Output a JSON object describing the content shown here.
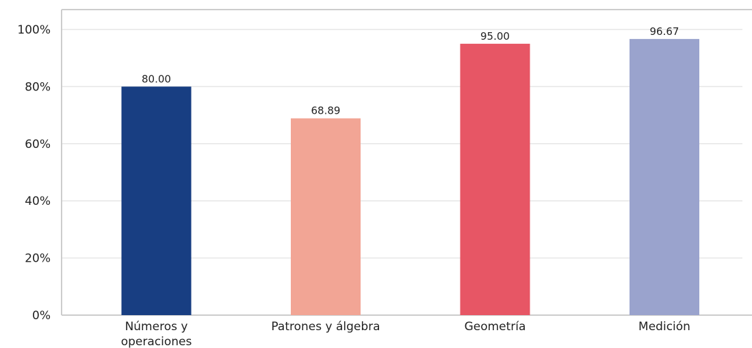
{
  "chart_data": {
    "type": "bar",
    "categories": [
      [
        "Números y",
        "operaciones"
      ],
      [
        "Patrones y álgebra"
      ],
      [
        "Geometría"
      ],
      [
        "Medición"
      ]
    ],
    "values": [
      80.0,
      68.89,
      95.0,
      96.67
    ],
    "data_labels": [
      "80.00",
      "68.89",
      "95.00",
      "96.67"
    ],
    "colors": [
      "#183e82",
      "#f2a595",
      "#e75665",
      "#9aa3cd"
    ],
    "ylim": [
      0,
      100
    ],
    "yticks": [
      0,
      20,
      40,
      60,
      80,
      100
    ],
    "ytick_labels": [
      "0%",
      "20%",
      "40%",
      "60%",
      "80%",
      "100%"
    ],
    "grid": true,
    "legend": "none",
    "title": "",
    "xlabel": "",
    "ylabel": ""
  }
}
